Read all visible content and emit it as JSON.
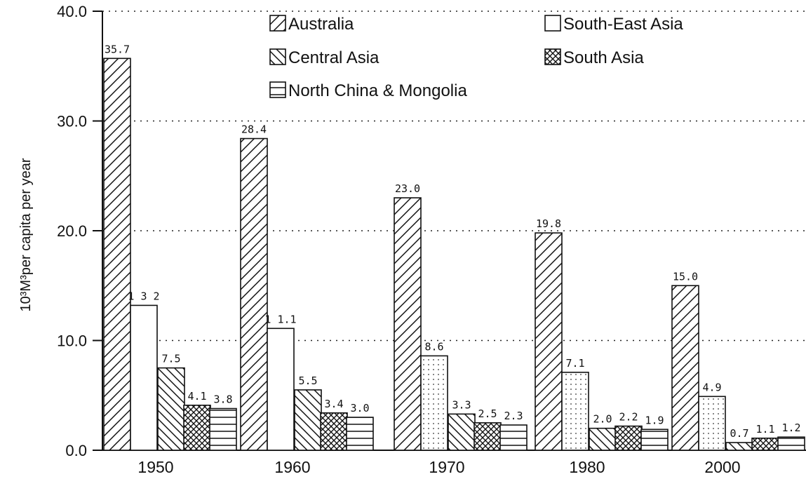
{
  "chart_data": {
    "type": "bar",
    "title": "",
    "xlabel": "",
    "ylabel": "10³M³per capita per year",
    "ylim": [
      0,
      40
    ],
    "yticks": [
      "0.0",
      "10.0",
      "20.0",
      "30.0",
      "40.0"
    ],
    "grid": "dotted horizontal",
    "legend_position": "top-right",
    "categories": [
      "1950",
      "1960",
      "1970",
      "1980",
      "2000"
    ],
    "series": [
      {
        "name": "Australia",
        "pattern": "diag-forward",
        "values": [
          35.7,
          28.4,
          23.0,
          19.8,
          15.0
        ],
        "labels": [
          "35.7",
          "28.4",
          "23.0",
          "19.8",
          "15.0"
        ]
      },
      {
        "name": "South-East Asia",
        "pattern": "plain-or-dotted",
        "values": [
          13.2,
          11.1,
          8.6,
          7.1,
          4.9
        ],
        "labels": [
          "1 3 2",
          "1 1.1",
          "8.6",
          "7.1",
          "4.9"
        ]
      },
      {
        "name": "Central Asia",
        "pattern": "diag-back",
        "values": [
          7.5,
          5.5,
          3.3,
          2.0,
          0.7
        ],
        "labels": [
          "7.5",
          "5.5",
          "3.3",
          "2.0",
          "0.7"
        ]
      },
      {
        "name": "South Asia",
        "pattern": "crosshatch",
        "values": [
          4.1,
          3.4,
          2.5,
          2.2,
          1.1
        ],
        "labels": [
          "4.1",
          "3.4",
          "2.5",
          "2.2",
          "1.1"
        ]
      },
      {
        "name": "North China & Mongolia",
        "pattern": "horizontal",
        "values": [
          3.8,
          3.0,
          2.3,
          1.9,
          1.2
        ],
        "labels": [
          "3.8",
          "3.0",
          "2.3",
          "1.9",
          "1.2"
        ]
      }
    ]
  }
}
